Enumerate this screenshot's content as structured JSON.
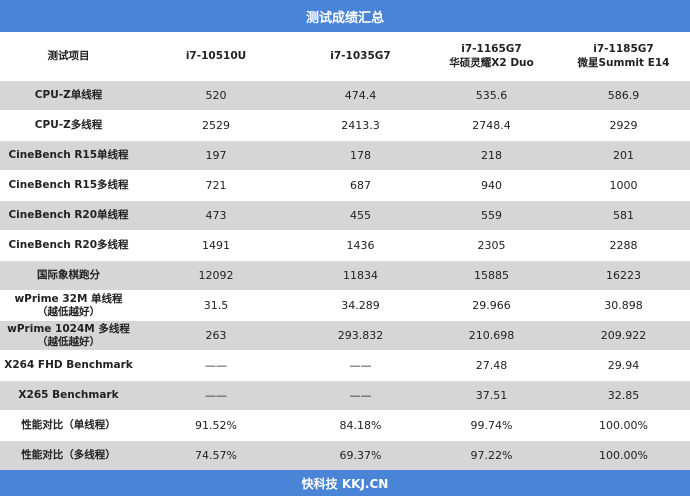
{
  "title": "测试成绩汇总",
  "footer": "快科技 KKJ.CN",
  "header": {
    "label": "测试项目",
    "cols": [
      {
        "line1": "i7-10510U",
        "line2": ""
      },
      {
        "line1": "i7-1035G7",
        "line2": ""
      },
      {
        "line1": "i7-1165G7",
        "line2": "华硕灵耀X2 Duo"
      },
      {
        "line1": "i7-1185G7",
        "line2": "微星Summit E14"
      }
    ]
  },
  "rows": [
    {
      "label": "CPU-Z单线程",
      "sub": "",
      "values": [
        "520",
        "474.4",
        "535.6",
        "586.9"
      ]
    },
    {
      "label": "CPU-Z多线程",
      "sub": "",
      "values": [
        "2529",
        "2413.3",
        "2748.4",
        "2929"
      ]
    },
    {
      "label": "CineBench R15单线程",
      "sub": "",
      "values": [
        "197",
        "178",
        "218",
        "201"
      ]
    },
    {
      "label": "CineBench R15多线程",
      "sub": "",
      "values": [
        "721",
        "687",
        "940",
        "1000"
      ]
    },
    {
      "label": "CineBench R20单线程",
      "sub": "",
      "values": [
        "473",
        "455",
        "559",
        "581"
      ]
    },
    {
      "label": "CineBench R20多线程",
      "sub": "",
      "values": [
        "1491",
        "1436",
        "2305",
        "2288"
      ]
    },
    {
      "label": "国际象棋跑分",
      "sub": "",
      "values": [
        "12092",
        "11834",
        "15885",
        "16223"
      ]
    },
    {
      "label": "wPrime 32M 单线程",
      "sub": "（越低越好）",
      "values": [
        "31.5",
        "34.289",
        "29.966",
        "30.898"
      ]
    },
    {
      "label": "wPrime 1024M 多线程",
      "sub": "（越低越好）",
      "values": [
        "263",
        "293.832",
        "210.698",
        "209.922"
      ]
    },
    {
      "label": "X264 FHD Benchmark",
      "sub": "",
      "values": [
        "——",
        "——",
        "27.48",
        "29.94"
      ]
    },
    {
      "label": "X265 Benchmark",
      "sub": "",
      "values": [
        "——",
        "——",
        "37.51",
        "32.85"
      ]
    },
    {
      "label": "性能对比（单线程）",
      "sub": "",
      "values": [
        "91.52%",
        "84.18%",
        "99.74%",
        "100.00%"
      ]
    },
    {
      "label": "性能对比（多线程）",
      "sub": "",
      "values": [
        "74.57%",
        "69.37%",
        "97.22%",
        "100.00%"
      ]
    }
  ]
}
